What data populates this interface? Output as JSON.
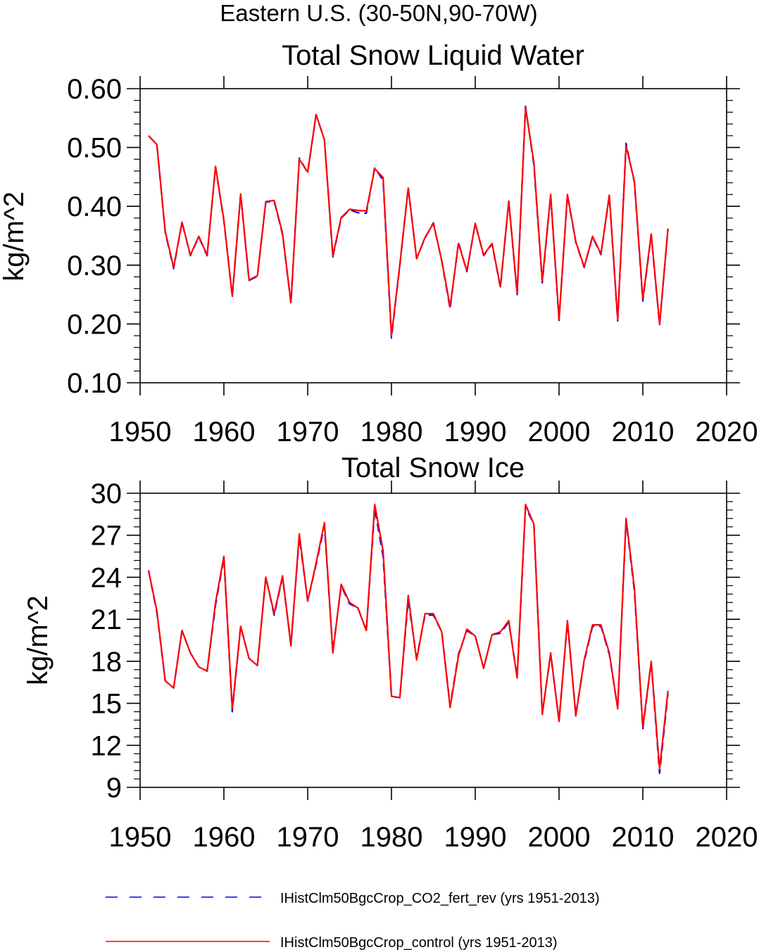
{
  "suptitle": "Eastern U.S. (30-50N,90-70W)",
  "legend": {
    "placement": "bottom",
    "entries": [
      {
        "label": "IHistClm50BgcCrop_CO2_fert_rev (yrs 1951-2013)",
        "color": "#0000ff",
        "dash": "dashed"
      },
      {
        "label": "IHistClm50BgcCrop_control (yrs 1951-2013)",
        "color": "#ff0000",
        "dash": "solid"
      }
    ]
  },
  "chart_data": [
    {
      "type": "line",
      "title": "Total Snow Liquid Water",
      "xlabel": "",
      "ylabel": "kg/m^2",
      "xlim": [
        1950,
        2020
      ],
      "ylim": [
        0.1,
        0.6
      ],
      "xticks": [
        1950,
        1960,
        1970,
        1980,
        1990,
        2000,
        2010,
        2020
      ],
      "xtick_labels": [
        "1950",
        "1960",
        "1970",
        "1980",
        "1990",
        "2000",
        "2010",
        "2020"
      ],
      "yticks": [
        0.1,
        0.2,
        0.3,
        0.4,
        0.5,
        0.6
      ],
      "ytick_labels": [
        "0.10",
        "0.20",
        "0.30",
        "0.40",
        "0.50",
        "0.60"
      ],
      "grid": false,
      "x": [
        1951,
        1952,
        1953,
        1954,
        1955,
        1956,
        1957,
        1958,
        1959,
        1960,
        1961,
        1962,
        1963,
        1964,
        1965,
        1966,
        1967,
        1968,
        1969,
        1970,
        1971,
        1972,
        1973,
        1974,
        1975,
        1976,
        1977,
        1978,
        1979,
        1980,
        1981,
        1982,
        1983,
        1984,
        1985,
        1986,
        1987,
        1988,
        1989,
        1990,
        1991,
        1992,
        1993,
        1994,
        1995,
        1996,
        1997,
        1998,
        1999,
        2000,
        2001,
        2002,
        2003,
        2004,
        2005,
        2006,
        2007,
        2008,
        2009,
        2010,
        2011,
        2012,
        2013
      ],
      "series": [
        {
          "name": "IHistClm50BgcCrop_CO2_fert_rev (yrs 1951-2013)",
          "color": "#0000ff",
          "dash": "dashed",
          "values": [
            0.52,
            0.505,
            0.355,
            0.294,
            0.373,
            0.316,
            0.348,
            0.316,
            0.467,
            0.375,
            0.247,
            0.42,
            0.274,
            0.281,
            0.407,
            0.409,
            0.352,
            0.235,
            0.482,
            0.457,
            0.556,
            0.513,
            0.314,
            0.38,
            0.394,
            0.389,
            0.388,
            0.466,
            0.444,
            0.176,
            0.3,
            0.432,
            0.311,
            0.346,
            0.372,
            0.307,
            0.226,
            0.339,
            0.289,
            0.371,
            0.316,
            0.336,
            0.262,
            0.408,
            0.25,
            0.57,
            0.47,
            0.27,
            0.419,
            0.206,
            0.419,
            0.339,
            0.296,
            0.348,
            0.318,
            0.418,
            0.205,
            0.507,
            0.44,
            0.239,
            0.351,
            0.198,
            0.362
          ]
        },
        {
          "name": "IHistClm50BgcCrop_control (yrs 1951-2013)",
          "color": "#ff0000",
          "dash": "solid",
          "values": [
            0.52,
            0.505,
            0.357,
            0.296,
            0.373,
            0.317,
            0.349,
            0.317,
            0.468,
            0.376,
            0.247,
            0.421,
            0.275,
            0.282,
            0.408,
            0.41,
            0.354,
            0.236,
            0.48,
            0.458,
            0.556,
            0.513,
            0.316,
            0.381,
            0.395,
            0.393,
            0.392,
            0.464,
            0.449,
            0.18,
            0.301,
            0.431,
            0.311,
            0.347,
            0.371,
            0.308,
            0.229,
            0.337,
            0.29,
            0.371,
            0.317,
            0.337,
            0.263,
            0.409,
            0.252,
            0.568,
            0.474,
            0.273,
            0.42,
            0.207,
            0.42,
            0.34,
            0.297,
            0.349,
            0.319,
            0.419,
            0.207,
            0.503,
            0.442,
            0.242,
            0.353,
            0.199,
            0.362
          ]
        }
      ]
    },
    {
      "type": "line",
      "title": "Total Snow Ice",
      "xlabel": "",
      "ylabel": "kg/m^2",
      "xlim": [
        1950,
        2020
      ],
      "ylim": [
        9,
        30
      ],
      "xticks": [
        1950,
        1960,
        1970,
        1980,
        1990,
        2000,
        2010,
        2020
      ],
      "xtick_labels": [
        "1950",
        "1960",
        "1970",
        "1980",
        "1990",
        "2000",
        "2010",
        "2020"
      ],
      "yticks": [
        9,
        12,
        15,
        18,
        21,
        24,
        27,
        30
      ],
      "ytick_labels": [
        "9",
        "12",
        "15",
        "18",
        "21",
        "24",
        "27",
        "30"
      ],
      "grid": false,
      "x": [
        1951,
        1952,
        1953,
        1954,
        1955,
        1956,
        1957,
        1958,
        1959,
        1960,
        1961,
        1962,
        1963,
        1964,
        1965,
        1966,
        1967,
        1968,
        1969,
        1970,
        1971,
        1972,
        1973,
        1974,
        1975,
        1976,
        1977,
        1978,
        1979,
        1980,
        1981,
        1982,
        1983,
        1984,
        1985,
        1986,
        1987,
        1988,
        1989,
        1990,
        1991,
        1992,
        1993,
        1994,
        1995,
        1996,
        1997,
        1998,
        1999,
        2000,
        2001,
        2002,
        2003,
        2004,
        2005,
        2006,
        2007,
        2008,
        2009,
        2010,
        2011,
        2012,
        2013
      ],
      "series": [
        {
          "name": "IHistClm50BgcCrop_CO2_fert_rev (yrs 1951-2013)",
          "color": "#0000ff",
          "dash": "dashed",
          "values": [
            24.5,
            21.5,
            16.6,
            16.1,
            20.2,
            18.6,
            17.6,
            17.3,
            22.0,
            25.4,
            14.4,
            20.5,
            18.2,
            17.7,
            24.0,
            21.3,
            24.0,
            19.2,
            26.9,
            22.3,
            24.9,
            27.7,
            18.7,
            23.4,
            22.1,
            21.8,
            20.2,
            28.9,
            25.5,
            15.5,
            15.4,
            22.4,
            18.2,
            21.3,
            21.3,
            20.1,
            14.8,
            18.5,
            20.2,
            19.8,
            17.5,
            19.9,
            20.0,
            20.8,
            16.9,
            29.0,
            27.8,
            14.3,
            18.5,
            13.8,
            20.8,
            14.2,
            18.0,
            20.5,
            20.5,
            18.5,
            14.7,
            28.1,
            23.0,
            13.2,
            17.9,
            10.0,
            15.7
          ]
        },
        {
          "name": "IHistClm50BgcCrop_control (yrs 1951-2013)",
          "color": "#ff0000",
          "dash": "solid",
          "values": [
            24.5,
            21.6,
            16.6,
            16.1,
            20.2,
            18.6,
            17.6,
            17.3,
            22.2,
            25.5,
            14.6,
            20.5,
            18.2,
            17.7,
            24.0,
            21.4,
            24.1,
            19.1,
            27.1,
            22.3,
            25.0,
            27.9,
            18.6,
            23.5,
            22.2,
            21.8,
            20.2,
            29.2,
            25.9,
            15.5,
            15.4,
            22.7,
            18.1,
            21.4,
            21.4,
            20.1,
            14.7,
            18.4,
            20.3,
            19.8,
            17.5,
            19.9,
            20.1,
            20.9,
            16.8,
            29.2,
            27.8,
            14.2,
            18.6,
            13.7,
            20.9,
            14.1,
            18.1,
            20.6,
            20.6,
            18.6,
            14.6,
            28.2,
            23.2,
            13.3,
            18.0,
            10.3,
            15.9
          ]
        }
      ]
    }
  ]
}
